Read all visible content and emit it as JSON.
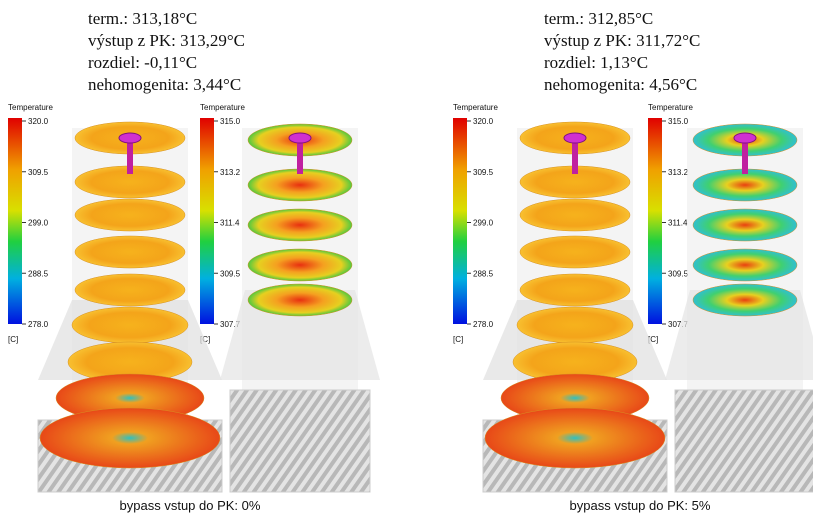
{
  "panels": [
    {
      "stats": [
        "term.: 313,18°C",
        "výstup z PK: 313,29°C",
        "rozdiel: -0,11°C",
        "nehomogenita: 3,44°C"
      ],
      "colorbars": [
        {
          "title": "Temperature",
          "ticks": [
            "320.0",
            "309.5",
            "299.0",
            "288.5",
            "278.0"
          ],
          "unit": "[C]"
        },
        {
          "title": "Temperature",
          "ticks": [
            "315.0",
            "313.2",
            "311.4",
            "309.5",
            "307.7"
          ],
          "unit": "[C]"
        }
      ],
      "caption": "bypass vstup do  PK: 0%"
    },
    {
      "stats": [
        "term.: 312,85°C",
        "výstup z PK: 311,72°C",
        "rozdiel: 1,13°C",
        "nehomogenita: 4,56°C"
      ],
      "colorbars": [
        {
          "title": "Temperature",
          "ticks": [
            "320.0",
            "309.5",
            "299.0",
            "288.5",
            "278.0"
          ],
          "unit": "[C]"
        },
        {
          "title": "Temperature",
          "ticks": [
            "315.0",
            "313.2",
            "311.4",
            "309.5",
            "307.7"
          ],
          "unit": "[C]"
        }
      ],
      "caption": "bypass vstup do  PK: 5%"
    }
  ]
}
